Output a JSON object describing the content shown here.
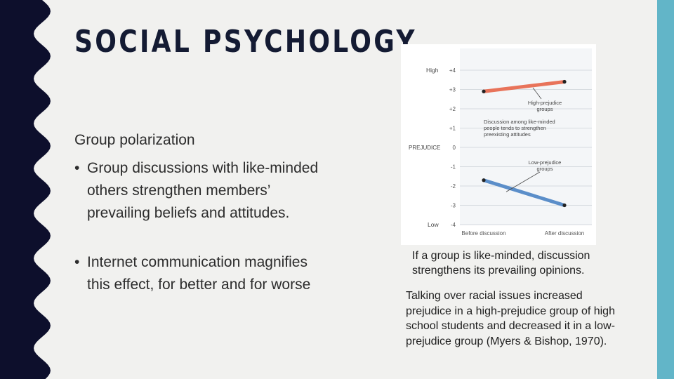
{
  "slide": {
    "title": "SOCIAL PSYCHOLOGY",
    "subtitle": "Group polarization",
    "bullets": [
      "Group discussions with like-minded others strengthen members’ prevailing beliefs and attitudes.",
      "Internet communication magnifies this effect, for better and for worse"
    ],
    "bullet_glyph": "•",
    "caption": "If a group is like-minded, discussion strengthens its prevailing opinions.",
    "body_text": "Talking over racial issues increased prejudice in a high-prejudice group of high school students and decreased it in a low-prejudice group (Myers & Bishop, 1970).",
    "colors": {
      "sidebar": "#0d0f2c",
      "accent_bar": "#62b5c8",
      "background": "#f1f1ef"
    }
  },
  "chart_data": {
    "type": "line",
    "ylabel": "PREJUDICE",
    "y_high_label": "High",
    "y_low_label": "Low",
    "ylim": [
      -4,
      4
    ],
    "y_ticks": [
      "+4",
      "+3",
      "+2",
      "+1",
      "0",
      "-1",
      "-2",
      "-3",
      "-4"
    ],
    "categories": [
      "Before discussion",
      "After discussion"
    ],
    "series": [
      {
        "name": "High-prejudice groups",
        "values": [
          2.9,
          3.4
        ],
        "color": "#e8735a"
      },
      {
        "name": "Low-prejudice groups",
        "values": [
          -1.7,
          -3.0
        ],
        "color": "#5b8ec9"
      }
    ],
    "annotations": {
      "high_label": [
        "High-prejudice",
        "groups"
      ],
      "low_label": [
        "Low-prejudice",
        "groups"
      ],
      "note": [
        "Discussion among like-minded",
        "people tends to strengthen",
        "preexisting attitudes"
      ]
    }
  }
}
